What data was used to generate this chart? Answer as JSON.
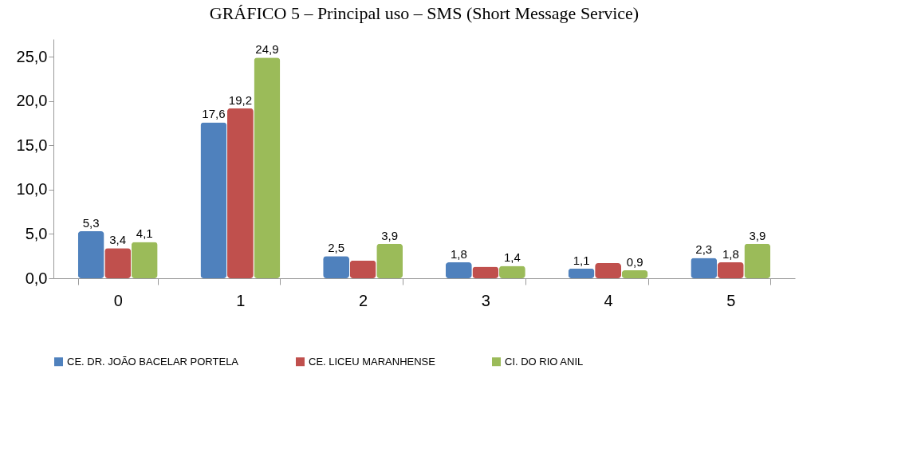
{
  "chart_data": {
    "type": "bar",
    "title": "GRÁFICO 5 – Principal uso – SMS (Short Message Service)",
    "categories": [
      "0",
      "1",
      "2",
      "3",
      "4",
      "5"
    ],
    "series": [
      {
        "name": "CE. DR. JOÃO BACELAR PORTELA",
        "color": "#4f81bd",
        "values": [
          5.3,
          17.6,
          2.5,
          1.8,
          1.1,
          2.3
        ],
        "value_labels": [
          "5,3",
          "17,6",
          "2,5",
          "1,8",
          "1,1",
          "2,3"
        ]
      },
      {
        "name": "CE. LICEU MARANHENSE",
        "color": "#c0504d",
        "values": [
          3.4,
          19.2,
          2.0,
          1.3,
          1.7,
          1.8
        ],
        "value_labels": [
          "3,4",
          "19,2",
          null,
          null,
          null,
          "1,8"
        ]
      },
      {
        "name": "CI.  DO RIO ANIL",
        "color": "#9bbb59",
        "values": [
          4.1,
          24.9,
          3.9,
          1.4,
          0.9,
          3.9
        ],
        "value_labels": [
          "4,1",
          "24,9",
          "3,9",
          "1,4",
          "0,9",
          "3,9"
        ]
      }
    ],
    "ylim": [
      0,
      27
    ],
    "yticks": [
      {
        "value": 0,
        "label": "0,0"
      },
      {
        "value": 5,
        "label": "5,0"
      },
      {
        "value": 10,
        "label": "10,0"
      },
      {
        "value": 15,
        "label": "15,0"
      },
      {
        "value": 20,
        "label": "20,0"
      },
      {
        "value": 25,
        "label": "25,0"
      }
    ],
    "grid": false,
    "legend": "bottom"
  }
}
